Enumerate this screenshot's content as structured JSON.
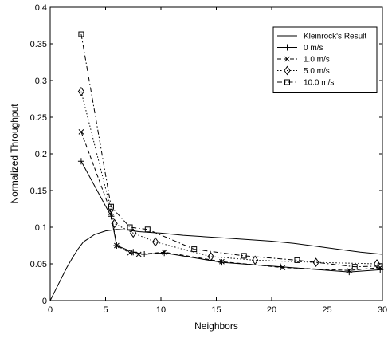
{
  "chart_data": {
    "type": "line",
    "title": "",
    "xlabel": "Neighbors",
    "ylabel": "Normalized Throughput",
    "xlim": [
      0,
      30
    ],
    "ylim": [
      0,
      0.4
    ],
    "xticks": [
      0,
      5,
      10,
      15,
      20,
      25,
      30
    ],
    "yticks": [
      0,
      0.05,
      0.1,
      0.15,
      0.2,
      0.25,
      0.3,
      0.35,
      0.4
    ],
    "xtick_labels": [
      "0",
      "5",
      "10",
      "15",
      "20",
      "25",
      "30"
    ],
    "ytick_labels": [
      "0",
      "0.05",
      "0.1",
      "0.15",
      "0.2",
      "0.25",
      "0.3",
      "0.35",
      "0.4"
    ],
    "grid": false,
    "legend_position": "top-right",
    "series": [
      {
        "name": "Kleinrock's Result",
        "line_style": "solid",
        "marker": "none",
        "x": [
          0,
          0.5,
          1,
          1.5,
          2,
          2.5,
          3,
          4,
          5,
          6,
          7,
          8,
          9,
          10,
          12,
          14,
          16,
          18,
          20,
          22,
          24,
          26,
          28,
          30
        ],
        "y": [
          0,
          0.015,
          0.03,
          0.045,
          0.058,
          0.07,
          0.08,
          0.09,
          0.095,
          0.097,
          0.096,
          0.094,
          0.093,
          0.092,
          0.089,
          0.087,
          0.085,
          0.083,
          0.081,
          0.078,
          0.074,
          0.07,
          0.066,
          0.063
        ]
      },
      {
        "name": "0 m/s",
        "line_style": "solid",
        "marker": "plus",
        "x": [
          2.8,
          5.5,
          6.0,
          7.5,
          8.5,
          10.3,
          15.5,
          20.8,
          27.0,
          29.8
        ],
        "y": [
          0.19,
          0.115,
          0.075,
          0.066,
          0.063,
          0.065,
          0.052,
          0.046,
          0.039,
          0.042
        ]
      },
      {
        "name": "1.0 m/s",
        "line_style": "dashed",
        "marker": "x",
        "x": [
          2.8,
          5.5,
          6.0,
          7.2,
          8.0,
          10.3,
          15.5,
          21.0,
          27.0,
          29.8
        ],
        "y": [
          0.23,
          0.12,
          0.075,
          0.065,
          0.063,
          0.066,
          0.053,
          0.045,
          0.041,
          0.045
        ]
      },
      {
        "name": "5.0 m/s",
        "line_style": "dotted",
        "marker": "diamond",
        "x": [
          2.8,
          5.8,
          7.5,
          9.5,
          14.5,
          18.5,
          24.0,
          29.5
        ],
        "y": [
          0.285,
          0.105,
          0.092,
          0.08,
          0.06,
          0.055,
          0.052,
          0.05
        ]
      },
      {
        "name": "10.0 m/s",
        "line_style": "dashdot",
        "marker": "square",
        "x": [
          2.8,
          5.5,
          7.2,
          8.8,
          13.0,
          17.5,
          22.3,
          27.5,
          29.8
        ],
        "y": [
          0.363,
          0.128,
          0.1,
          0.097,
          0.07,
          0.061,
          0.055,
          0.046,
          0.047
        ]
      }
    ]
  }
}
